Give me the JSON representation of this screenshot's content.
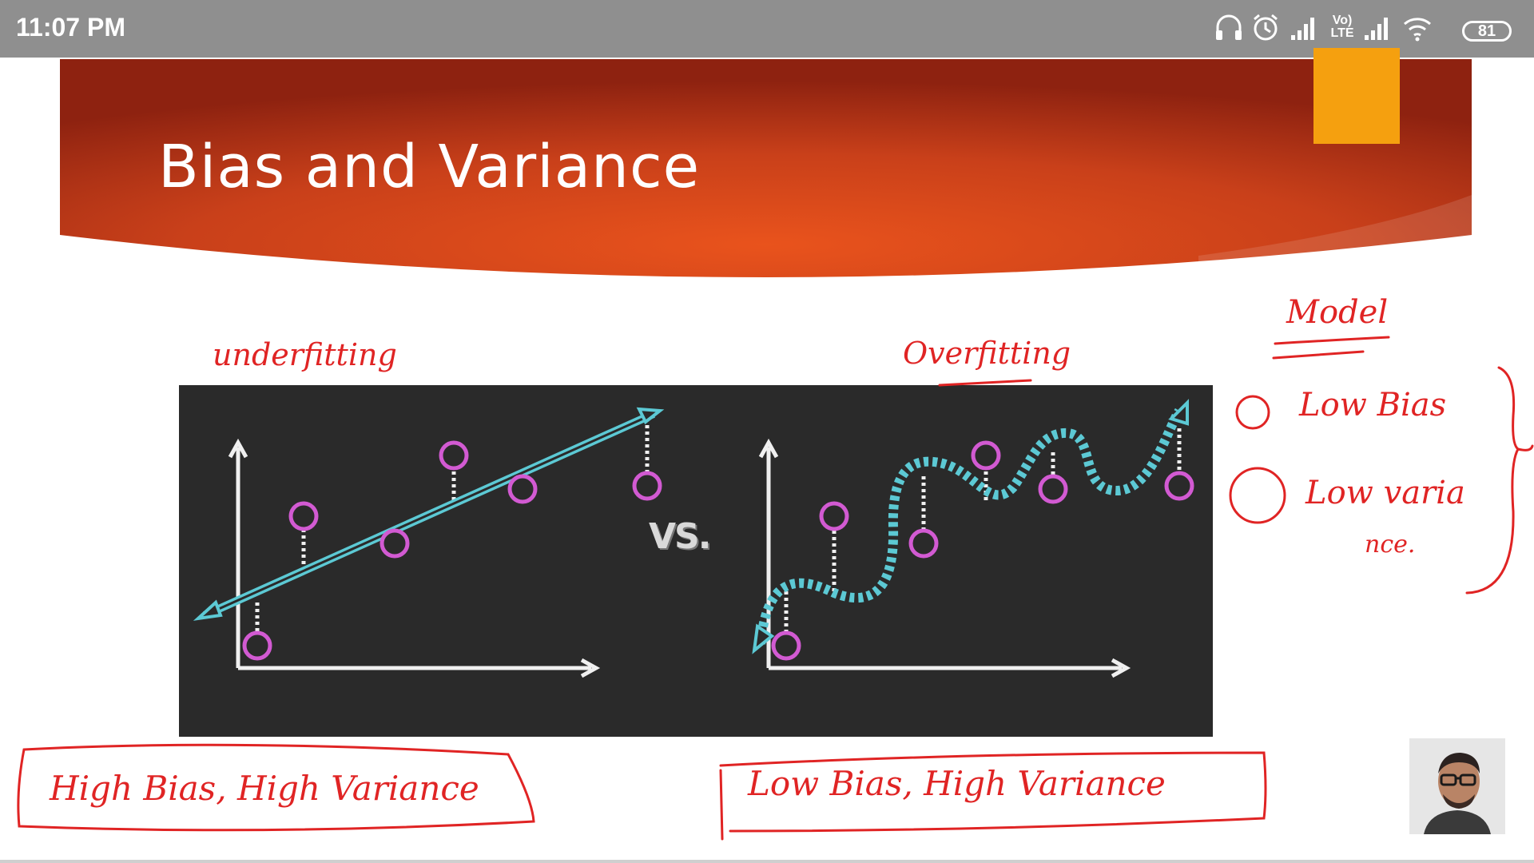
{
  "status_bar": {
    "time": "11:07 PM",
    "network": "Vo) LTE",
    "battery": "81",
    "icons": [
      "headphones-icon",
      "alarm-icon",
      "signal-icon",
      "volte-icon",
      "signal-icon",
      "wifi-icon",
      "battery-icon"
    ]
  },
  "slide": {
    "title": "Bias and Variance",
    "vs_label": "VS.",
    "banner_color": "#d9461a",
    "curve_color": "#5cc9d4",
    "point_color": "#d25ad2"
  },
  "annotations": {
    "underfitting": "underfitting",
    "overfitting": "Overfitting",
    "model": "Model",
    "low_bias": "Low Bias",
    "low_variance": "Low varia",
    "variance_cont": "nce.",
    "left_caption": "High Bias, High Variance",
    "right_caption": "Low Bias, High Variance",
    "ink_color": "#e02424"
  }
}
